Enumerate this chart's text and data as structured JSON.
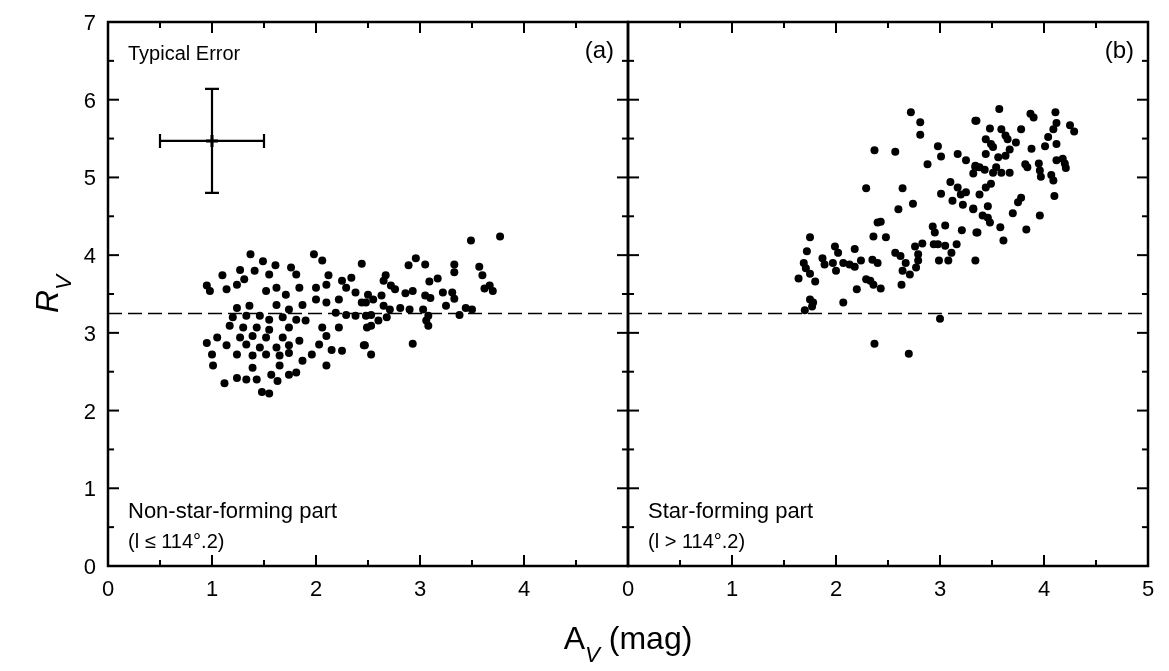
{
  "chart_data": [
    {
      "type": "scatter",
      "ylabel": "R$_{V}$",
      "xlabel": "A$_{V}$ (mag)",
      "xlim": [
        0,
        5
      ],
      "ylim": [
        0,
        7
      ],
      "xticks": [
        0,
        {
          "value": 0.5,
          "label": null
        },
        1,
        {
          "value": 1.5,
          "label": null
        },
        2,
        {
          "value": 2.5,
          "label": null
        },
        3,
        {
          "value": 3.5,
          "label": null
        },
        4,
        {
          "value": 4.5,
          "label": null
        }
      ],
      "yticks": [
        0,
        {
          "value": 0.5,
          "label": null
        },
        1,
        {
          "value": 1.5,
          "label": null
        },
        2,
        {
          "value": 2.5,
          "label": null
        },
        3,
        {
          "value": 3.5,
          "label": null
        },
        4,
        {
          "value": 4.5,
          "label": null
        },
        5,
        {
          "value": 5.5,
          "label": null
        },
        6,
        {
          "value": 6.5,
          "label": null
        },
        7
      ],
      "marker": "circle",
      "grid": false,
      "ref_lines": [
        {
          "axis": "y",
          "value": 3.25,
          "line_style": "dashed",
          "color": "#000000"
        }
      ],
      "annotations": [
        "(a)",
        "Non-star-forming part",
        "(l ≤ 114°.2)",
        "Typical Error"
      ],
      "series": [
        {
          "color": "#000000",
          "x": [
            1.37,
            1.49,
            1.98,
            2.06,
            2.44,
            1.76,
            1.61,
            1.41,
            1.27,
            1.1,
            0.95,
            0.98,
            1.14,
            1.31,
            1.55,
            1.81,
            2.12,
            2.25,
            2.34,
            2.0,
            2.1,
            1.84,
            1.62,
            1.24,
            1.52,
            1.71,
            2.29,
            2.38,
            2.0,
            2.1,
            2.22,
            2.44,
            1.87,
            1.24,
            1.36,
            1.62,
            1.74,
            2.19,
            2.38,
            2.29,
            1.2,
            1.33,
            1.46,
            1.55,
            1.68,
            1.81,
            1.9,
            1.17,
            1.3,
            1.43,
            1.55,
            1.74,
            2.06,
            2.22,
            1.27,
            1.39,
            1.52,
            1.68,
            1.84,
            2.1,
            1.05,
            0.95,
            1.14,
            1.33,
            1.46,
            1.62,
            1.74,
            2.03,
            2.15,
            2.25,
            2.46,
            1.0,
            1.24,
            1.39,
            1.52,
            1.65,
            1.74,
            1.96,
            1.01,
            1.39,
            1.65,
            1.87,
            2.1,
            1.74,
            1.81,
            1.57,
            1.24,
            1.33,
            1.43,
            1.63,
            1.12,
            1.48,
            1.55,
            3.49,
            3.77,
            2.96,
            2.89,
            3.05,
            3.33,
            3.33,
            3.57,
            3.6,
            3.67,
            3.62,
            3.7,
            2.67,
            2.65,
            2.72,
            2.76,
            3.09,
            3.17,
            2.86,
            2.93,
            3.05,
            3.1,
            3.22,
            3.31,
            3.33,
            3.25,
            2.5,
            2.63,
            2.48,
            2.55,
            2.65,
            2.71,
            2.81,
            2.9,
            3.03,
            3.08,
            3.06,
            3.08,
            3.38,
            3.44,
            3.5,
            2.48,
            2.53,
            2.6,
            2.68,
            2.49,
            2.53,
            2.47,
            2.53,
            2.93
          ],
          "values": [
            4.01,
            3.92,
            4.01,
            3.93,
            3.89,
            3.84,
            3.87,
            3.8,
            3.81,
            3.74,
            3.61,
            3.54,
            3.56,
            3.69,
            3.75,
            3.75,
            3.74,
            3.67,
            3.71,
            3.58,
            3.62,
            3.58,
            3.58,
            3.62,
            3.54,
            3.49,
            3.58,
            3.52,
            3.43,
            3.39,
            3.43,
            3.39,
            3.36,
            3.32,
            3.35,
            3.36,
            3.3,
            3.26,
            3.22,
            3.23,
            3.2,
            3.22,
            3.22,
            3.17,
            3.2,
            3.17,
            3.16,
            3.09,
            3.07,
            3.07,
            3.04,
            3.07,
            3.07,
            3.07,
            2.94,
            2.96,
            2.94,
            2.94,
            2.9,
            2.96,
            2.94,
            2.87,
            2.84,
            2.85,
            2.81,
            2.81,
            2.84,
            2.85,
            2.78,
            2.77,
            2.84,
            2.72,
            2.72,
            2.71,
            2.72,
            2.71,
            2.74,
            2.72,
            2.58,
            2.55,
            2.58,
            2.64,
            2.58,
            2.46,
            2.49,
            2.46,
            2.42,
            2.4,
            2.4,
            2.38,
            2.35,
            2.24,
            2.22,
            4.19,
            4.24,
            3.96,
            3.87,
            3.88,
            3.88,
            3.78,
            3.85,
            3.74,
            3.61,
            3.57,
            3.54,
            3.74,
            3.67,
            3.61,
            3.56,
            3.66,
            3.7,
            3.51,
            3.54,
            3.48,
            3.45,
            3.52,
            3.52,
            3.44,
            3.35,
            3.49,
            3.48,
            3.39,
            3.43,
            3.35,
            3.3,
            3.32,
            3.3,
            3.3,
            3.22,
            3.16,
            3.09,
            3.23,
            3.32,
            3.3,
            3.22,
            3.23,
            3.16,
            3.2,
            3.07,
            3.09,
            2.84,
            2.72,
            2.86
          ]
        },
        {
          "type": "scatter",
          "color": "#000000",
          "marker": "cross",
          "x": [
            1
          ],
          "values": [
            5.47
          ],
          "errors": [
            0.67
          ],
          "xerrors": [
            0.5
          ]
        }
      ]
    },
    {
      "type": "scatter",
      "xlim": [
        0,
        5
      ],
      "ylim": [
        0,
        7
      ],
      "tick_labels": "x",
      "xticks": [
        0,
        {
          "value": 0.5,
          "label": null
        },
        1,
        {
          "value": 1.5,
          "label": null
        },
        2,
        {
          "value": 2.5,
          "label": null
        },
        3,
        {
          "value": 3.5,
          "label": null
        },
        4,
        {
          "value": 4.5,
          "label": null
        },
        5
      ],
      "yticks": [
        0,
        {
          "value": 0.5,
          "label": null
        },
        1,
        {
          "value": 1.5,
          "label": null
        },
        2,
        {
          "value": 2.5,
          "label": null
        },
        3,
        {
          "value": 3.5,
          "label": null
        },
        4,
        {
          "value": 4.5,
          "label": null
        },
        5,
        {
          "value": 5.5,
          "label": null
        },
        6,
        {
          "value": 6.5,
          "label": null
        },
        7
      ],
      "marker": "circle",
      "grid": false,
      "ref_lines": [
        {
          "axis": "y",
          "value": 3.25,
          "line_style": "dashed",
          "color": "#000000"
        }
      ],
      "annotations": [
        "(b)",
        "Star-forming part",
        "(l > 114°.2)"
      ],
      "series": [
        {
          "color": "#000000",
          "x": [
            2.72,
            2.81,
            2.81,
            3.34,
            2.37,
            2.57,
            2.98,
            3.01,
            2.88,
            3.17,
            3.25,
            3.34,
            3.32,
            2.29,
            2.64,
            3.1,
            3.17,
            3.2,
            3.25,
            3.01,
            3.12,
            3.22,
            3.32,
            2.74,
            2.6,
            2.43,
            2.4,
            2.93,
            3.05,
            2.95,
            3.21,
            3.35,
            2.36,
            2.48,
            1.75,
            1.99,
            2.02,
            2.18,
            1.72,
            1.87,
            1.97,
            1.89,
            2.07,
            2.13,
            2.18,
            2.24,
            2.35,
            2.4,
            2.0,
            1.69,
            1.71,
            1.75,
            1.8,
            1.64,
            2.57,
            2.62,
            2.67,
            2.76,
            2.83,
            2.79,
            2.79,
            2.77,
            2.71,
            2.64,
            2.94,
            2.98,
            3.05,
            3.11,
            3.16,
            2.99,
            3.08,
            3.34,
            2.29,
            2.33,
            2.36,
            2.2,
            2.43,
            2.63,
            2.07,
            1.75,
            1.78,
            1.77,
            1.7,
            3.0,
            2.37,
            2.7,
            3.57,
            3.35,
            3.48,
            3.59,
            3.63,
            3.65,
            3.78,
            3.87,
            3.9,
            4.11,
            4.12,
            4.09,
            4.04,
            4.25,
            4.29,
            3.44,
            3.49,
            3.51,
            3.73,
            3.67,
            3.63,
            3.88,
            4.01,
            4.12,
            3.44,
            3.56,
            3.34,
            3.38,
            3.43,
            3.51,
            3.54,
            3.59,
            3.67,
            3.82,
            3.84,
            3.95,
            3.96,
            3.97,
            4.12,
            4.18,
            4.2,
            4.21,
            4.07,
            4.09,
            3.44,
            3.49,
            3.38,
            3.78,
            3.75,
            4.1,
            3.32,
            3.46,
            3.41,
            3.46,
            3.48,
            3.7,
            3.96,
            3.58,
            3.83,
            3.36,
            3.61
          ],
          "values": [
            5.84,
            5.71,
            5.55,
            5.73,
            5.35,
            5.33,
            5.4,
            5.27,
            5.17,
            5.3,
            5.22,
            5.13,
            5.05,
            4.86,
            4.86,
            4.94,
            4.87,
            4.78,
            4.81,
            4.79,
            4.7,
            4.65,
            4.6,
            4.66,
            4.59,
            4.43,
            4.42,
            4.37,
            4.38,
            4.29,
            4.32,
            4.29,
            4.24,
            4.23,
            4.23,
            4.11,
            4.03,
            4.08,
            4.05,
            3.96,
            3.9,
            3.88,
            3.9,
            3.88,
            3.85,
            3.93,
            3.94,
            3.9,
            3.8,
            3.9,
            3.83,
            3.76,
            3.66,
            3.7,
            4.03,
            3.99,
            3.9,
            4.11,
            4.15,
            4.01,
            3.93,
            3.84,
            3.75,
            3.8,
            4.14,
            4.14,
            4.12,
            4.03,
            4.14,
            3.93,
            3.93,
            3.93,
            3.69,
            3.67,
            3.62,
            3.56,
            3.57,
            3.62,
            3.39,
            3.43,
            3.39,
            3.34,
            3.29,
            3.18,
            2.86,
            2.73,
            5.88,
            5.73,
            5.63,
            5.62,
            5.54,
            5.49,
            5.62,
            5.82,
            5.77,
            5.84,
            5.7,
            5.62,
            5.52,
            5.67,
            5.59,
            5.49,
            5.43,
            5.39,
            5.45,
            5.36,
            5.28,
            5.37,
            5.4,
            5.43,
            5.3,
            5.26,
            5.15,
            5.13,
            5.1,
            5.06,
            5.13,
            5.06,
            5.06,
            5.17,
            5.13,
            5.18,
            5.09,
            5.01,
            5.22,
            5.24,
            5.18,
            5.12,
            5.03,
            4.96,
            4.87,
            4.92,
            4.78,
            4.74,
            4.68,
            4.76,
            4.59,
            4.63,
            4.51,
            4.48,
            4.42,
            4.54,
            4.51,
            4.36,
            4.33,
            4.29,
            4.19
          ]
        }
      ]
    }
  ]
}
